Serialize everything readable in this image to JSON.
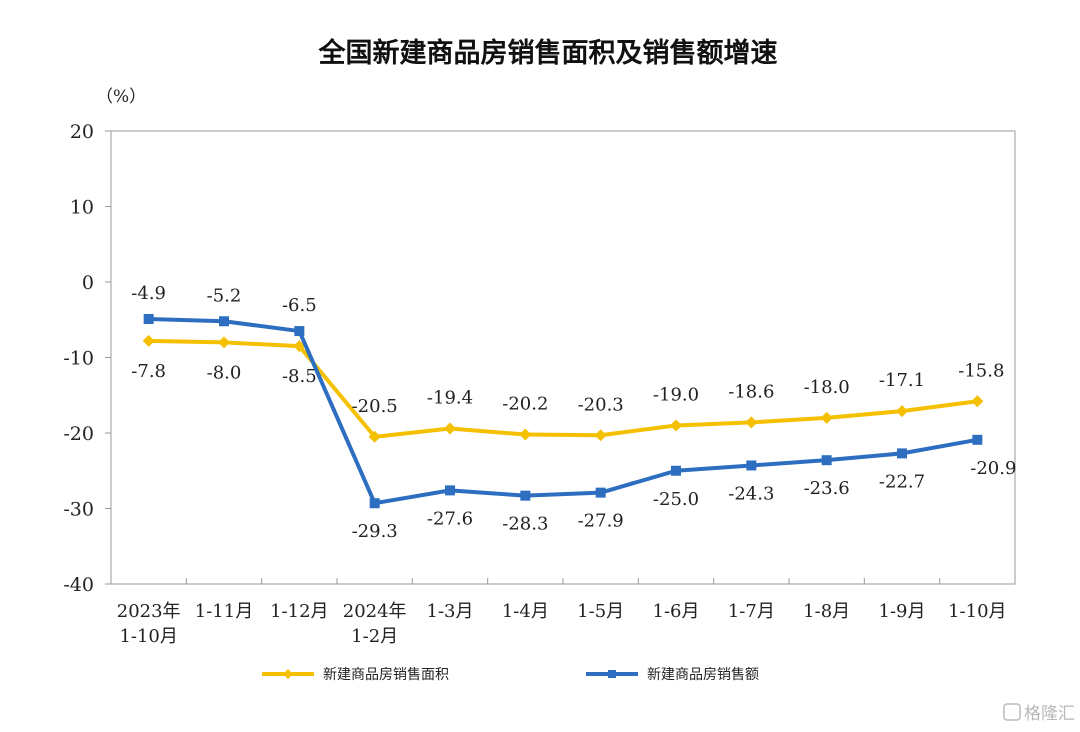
{
  "watermark": "格隆汇",
  "chart_data": {
    "type": "line",
    "title": "全国新建商品房销售面积及销售额增速",
    "ylabel": "（%）",
    "ylim": [
      -40,
      20
    ],
    "yticks": [
      "20",
      "10",
      "0",
      "-10",
      "-20",
      "-30",
      "-40"
    ],
    "categories": [
      [
        "2023年",
        "1-10月"
      ],
      [
        "1-11月"
      ],
      [
        "1-12月"
      ],
      [
        "2024年",
        "1-2月"
      ],
      [
        "1-3月"
      ],
      [
        "1-4月"
      ],
      [
        "1-5月"
      ],
      [
        "1-6月"
      ],
      [
        "1-7月"
      ],
      [
        "1-8月"
      ],
      [
        "1-9月"
      ],
      [
        "1-10月"
      ]
    ],
    "series": [
      {
        "name": "新建商品房销售面积",
        "color": "#F5C000",
        "marker": "diamond",
        "values": [
          -7.8,
          -8.0,
          -8.5,
          -20.5,
          -19.4,
          -20.2,
          -20.3,
          -19.0,
          -18.6,
          -18.0,
          -17.1,
          -15.8
        ],
        "labels": [
          "-7.8",
          "-8.0",
          "-8.5",
          "-20.5",
          "-19.4",
          "-20.2",
          "-20.3",
          "-19.0",
          "-18.6",
          "-18.0",
          "-17.1",
          "-15.8"
        ]
      },
      {
        "name": "新建商品房销售额",
        "color": "#2E6EC0",
        "marker": "square",
        "values": [
          -4.9,
          -5.2,
          -6.5,
          -29.3,
          -27.6,
          -28.3,
          -27.9,
          -25.0,
          -24.3,
          -23.6,
          -22.7,
          -20.9
        ],
        "labels": [
          "-4.9",
          "-5.2",
          "-6.5",
          "-29.3",
          "-27.6",
          "-28.3",
          "-27.9",
          "-25.0",
          "-24.3",
          "-23.6",
          "-22.7",
          "-20.9"
        ]
      }
    ],
    "legend_position": "bottom",
    "grid": false
  }
}
